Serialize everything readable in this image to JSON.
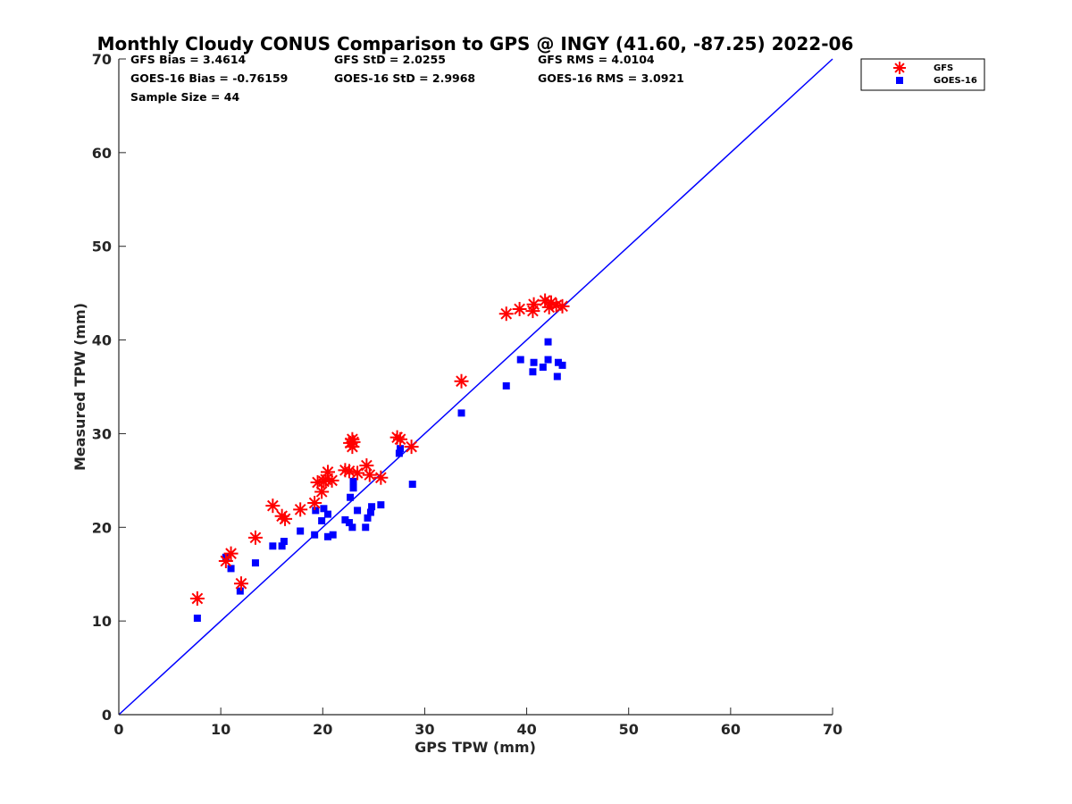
{
  "chart_data": {
    "type": "scatter",
    "title": "Monthly Cloudy CONUS Comparison to GPS @ INGY (41.60, -87.25) 2022-06",
    "xlabel": "GPS TPW (mm)",
    "ylabel": "Measured TPW (mm)",
    "xlim": [
      0,
      70
    ],
    "ylim": [
      0,
      70
    ],
    "xticks": [
      0,
      10,
      20,
      30,
      40,
      50,
      60,
      70
    ],
    "yticks": [
      0,
      10,
      20,
      30,
      40,
      50,
      60,
      70
    ],
    "grid": false,
    "legend_position": "outside-top-right",
    "reference_line": {
      "name": "1:1 line",
      "from": [
        0,
        0
      ],
      "to": [
        70,
        70
      ],
      "color": "#0000ff"
    },
    "stats": {
      "gfs_bias": "GFS Bias = 3.4614",
      "gfs_std": "GFS StD = 2.0255",
      "gfs_rms": "GFS RMS = 4.0104",
      "goes_bias": "GOES-16 Bias = -0.76159",
      "goes_std": "GOES-16 StD = 2.9968",
      "goes_rms": "GOES-16 RMS = 3.0921",
      "sample_size": "Sample Size = 44"
    },
    "series": [
      {
        "name": "GFS",
        "marker": "asterisk",
        "color": "#ff0000",
        "x": [
          7.7,
          10.5,
          11.0,
          12.0,
          13.4,
          15.1,
          16.0,
          16.3,
          17.8,
          19.2,
          19.5,
          19.9,
          20.1,
          20.3,
          20.5,
          20.9,
          22.2,
          22.6,
          22.7,
          22.9,
          22.9,
          23.0,
          23.4,
          24.3,
          24.6,
          25.7,
          27.3,
          27.6,
          28.7,
          33.6,
          38.0,
          39.3,
          40.6,
          40.7,
          41.8,
          42.2,
          42.4,
          42.9,
          43.5
        ],
        "y": [
          12.4,
          16.4,
          17.2,
          14.0,
          18.9,
          22.3,
          21.2,
          20.9,
          21.9,
          22.6,
          24.8,
          23.8,
          24.9,
          25.1,
          25.9,
          25.0,
          26.1,
          26.0,
          29.0,
          28.6,
          29.4,
          29.1,
          25.8,
          26.6,
          25.6,
          25.3,
          29.6,
          29.4,
          28.6,
          35.6,
          42.8,
          43.3,
          43.1,
          43.8,
          44.2,
          43.5,
          44.0,
          43.7,
          43.6
        ]
      },
      {
        "name": "GOES-16",
        "marker": "square",
        "color": "#0000ff",
        "x": [
          7.7,
          10.5,
          11.0,
          11.9,
          13.4,
          15.1,
          16.0,
          16.2,
          17.8,
          19.2,
          19.3,
          19.9,
          20.1,
          20.5,
          20.5,
          21.0,
          22.2,
          22.6,
          22.7,
          22.9,
          23.0,
          23.0,
          23.4,
          24.2,
          24.4,
          24.7,
          24.8,
          25.7,
          27.5,
          27.6,
          28.8,
          33.6,
          38.0,
          39.4,
          40.6,
          40.7,
          41.6,
          42.1,
          42.1,
          43.0,
          43.1,
          43.5
        ],
        "y": [
          10.3,
          16.8,
          15.6,
          13.2,
          16.2,
          18.0,
          18.0,
          18.5,
          19.6,
          19.2,
          21.8,
          20.7,
          22.0,
          21.4,
          19.0,
          19.2,
          20.8,
          20.5,
          23.2,
          20.0,
          24.2,
          24.9,
          21.8,
          20.0,
          21.0,
          21.6,
          22.2,
          22.4,
          27.9,
          28.4,
          24.6,
          32.2,
          35.1,
          37.9,
          36.6,
          37.6,
          37.1,
          39.8,
          37.9,
          36.1,
          37.6,
          37.3
        ]
      }
    ]
  }
}
